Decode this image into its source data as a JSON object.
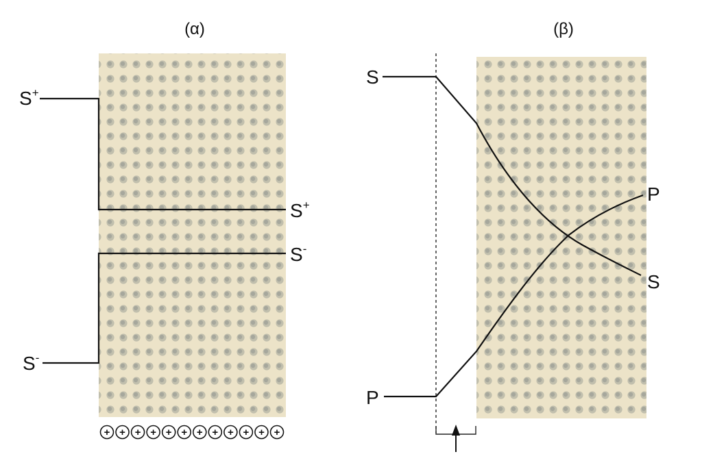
{
  "panels": {
    "a": {
      "title": "(α)",
      "left_top": {
        "base": "S",
        "sup": "+"
      },
      "left_bottom": {
        "base": "S",
        "sup": "-"
      },
      "right_top": {
        "base": "S",
        "sup": "+"
      },
      "right_bottom": {
        "base": "S",
        "sup": "-"
      },
      "charge_symbol": "+",
      "charge_count": 12
    },
    "b": {
      "title": "(β)",
      "left_top": "S",
      "left_bottom": "P",
      "right_top": "P",
      "right_bottom": "S"
    }
  },
  "colors": {
    "membrane": "#ece3c8",
    "dot_light": "#a9a89a",
    "dot_dark": "#8d8f8a",
    "line": "#111111"
  }
}
